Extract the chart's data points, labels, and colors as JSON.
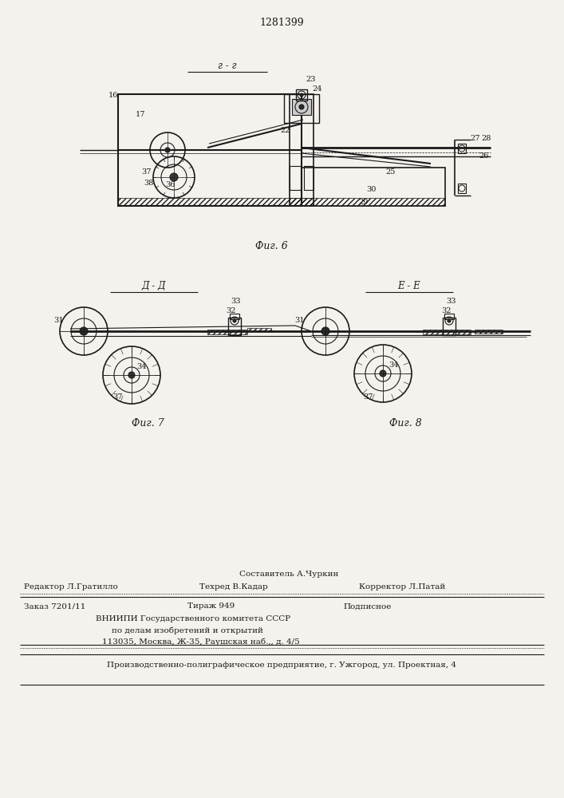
{
  "patent_number": "1281399",
  "bg_color": "#f5f2ed",
  "line_color": "#1a1a1a",
  "fig6_label": "Фиг. 6",
  "fig7_label": "Фиг. 7",
  "fig8_label": "Фиг. 8",
  "section_g": "г - г",
  "section_d": "Д - Д",
  "section_e": "Е - Е",
  "footer_sostavitel": "Составитель А.Чуркин",
  "footer_redaktor": "Редактор Л.Гратилло",
  "footer_tehred": "Техред В.Кадар",
  "footer_korrektor": "Корректор Л.Патай",
  "footer_zakaz": "Заказ 7201/11",
  "footer_tirazh": "Тираж 949",
  "footer_podpisnoe": "Подписное",
  "footer_vnipi": "ВНИИПИ Государственного комитета СССР",
  "footer_po_delam": "по делам изобретений и открытий",
  "footer_address": "113035, Москва, Ж-35, Раушская наб.,, д. 4/5",
  "footer_proizv": "Производственно-полиграфическое предприятие, г. Ужгород, ул. Проектная, 4"
}
